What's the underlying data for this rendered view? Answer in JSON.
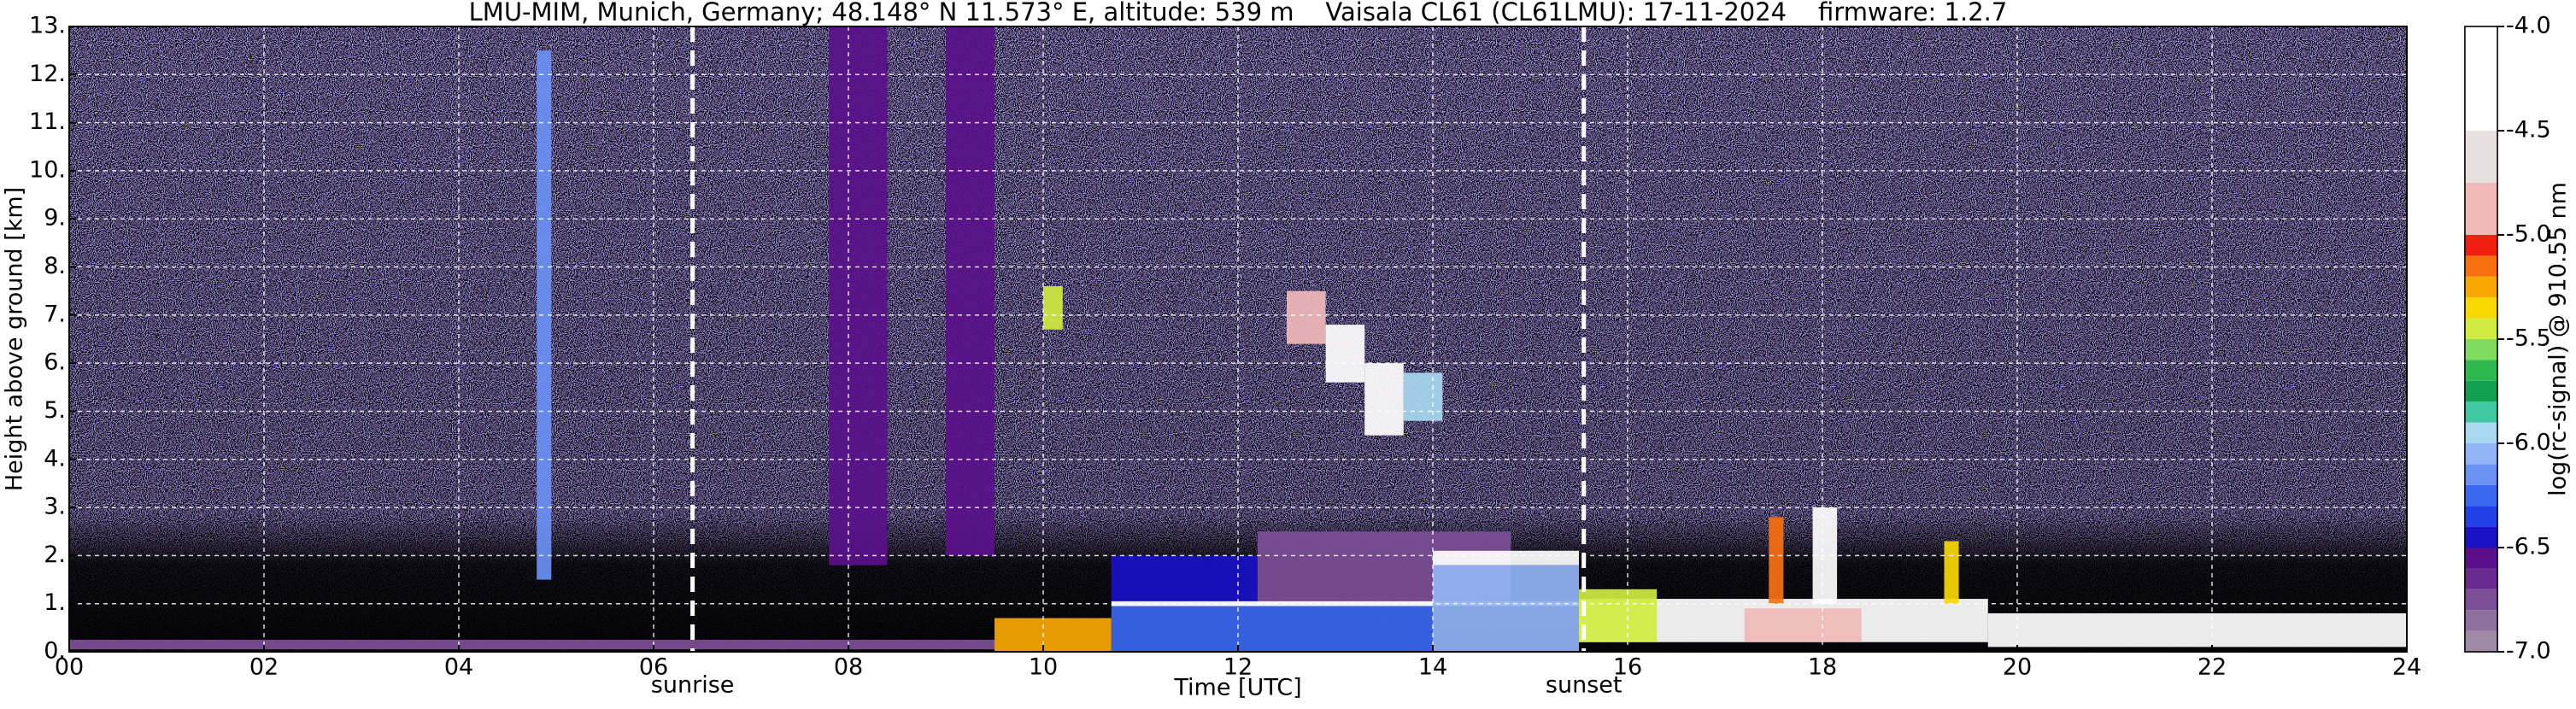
{
  "chart_data": {
    "type": "heatmap",
    "title": "LMU-MIM, Munich, Germany; 48.148° N 11.573° E, altitude: 539 m    Vaisala CL61 (CL61LMU): 17-11-2024    firmware: 1.2.7",
    "x_label": "Time [UTC]",
    "y_label": "Height above ground [km]",
    "colorbar_label": "log(rc-signal) @ 910.55 nm",
    "xlim": [
      0,
      24
    ],
    "xticks": [
      {
        "value": 0,
        "label": "00"
      },
      {
        "value": 2,
        "label": "02"
      },
      {
        "value": 4,
        "label": "04"
      },
      {
        "value": 6,
        "label": "06"
      },
      {
        "value": 8,
        "label": "08"
      },
      10,
      12,
      14,
      16,
      18,
      20,
      22,
      24
    ],
    "ylim": [
      0,
      13
    ],
    "yticks": [
      {
        "value": 0,
        "label": "0."
      },
      {
        "value": 1,
        "label": "1."
      },
      {
        "value": 2,
        "label": "2."
      },
      {
        "value": 3,
        "label": "3."
      },
      {
        "value": 4,
        "label": "4."
      },
      {
        "value": 5,
        "label": "5."
      },
      {
        "value": 6,
        "label": "6."
      },
      {
        "value": 7,
        "label": "7."
      },
      {
        "value": 8,
        "label": "8."
      },
      {
        "value": 9,
        "label": "9."
      },
      {
        "value": 10,
        "label": "10."
      },
      {
        "value": 11,
        "label": "11."
      },
      {
        "value": 12,
        "label": "12."
      },
      {
        "value": 13,
        "label": "13."
      }
    ],
    "grid": true,
    "clim": [
      -7,
      -4
    ],
    "cticks": [
      {
        "value": -7,
        "label": "-7.0"
      },
      {
        "value": -6.5,
        "label": "-6.5"
      },
      {
        "value": -6,
        "label": "-6.0"
      },
      {
        "value": -5.5,
        "label": "-5.5"
      },
      {
        "value": -5,
        "label": "-5.0"
      },
      {
        "value": -4.5,
        "label": "-4.5"
      },
      {
        "value": -4,
        "label": "-4.0"
      }
    ],
    "levels": [
      -7,
      -6.9,
      -6.8,
      -6.7,
      -6.6,
      -6.5,
      -6.4,
      -6.3,
      -6.2,
      -6.1,
      -6,
      -5.9,
      -5.8,
      -5.7,
      -5.6,
      -5.5,
      -5.4,
      -5.3,
      -5.2,
      -5.1,
      -5,
      -4.75,
      -4.5,
      -4
    ],
    "colors": [
      "#9e8aa6",
      "#8f6f9e",
      "#7d4f98",
      "#6a2a90",
      "#5a108a",
      "#1a10c8",
      "#2040e8",
      "#3a68f0",
      "#6a90f4",
      "#90b4f6",
      "#a8d8f0",
      "#40c8a0",
      "#10a050",
      "#30b850",
      "#80dc60",
      "#d0ec40",
      "#f8d800",
      "#f8a800",
      "#f87010",
      "#f02010",
      "#f0b8b8",
      "#e8e0e0",
      "#ffffff"
    ],
    "regions": [
      {
        "x0": 0,
        "x1": 9.5,
        "y0": 0.05,
        "y1": 0.25,
        "value": -6.8
      },
      {
        "x0": 4.8,
        "x1": 4.95,
        "y0": 1.5,
        "y1": 12.5,
        "value": -6.2
      },
      {
        "x0": 7.8,
        "x1": 8.4,
        "y0": 1.8,
        "y1": 13,
        "value": -6.55
      },
      {
        "x0": 9,
        "x1": 9.5,
        "y0": 2,
        "y1": 13,
        "value": -6.6
      },
      {
        "x0": 9.5,
        "x1": 10.7,
        "y0": 0,
        "y1": 0.7,
        "value": -5.3
      },
      {
        "x0": 10.7,
        "x1": 14,
        "y0": 0,
        "y1": 1,
        "value": -6.3
      },
      {
        "x0": 10.7,
        "x1": 12.2,
        "y0": 1,
        "y1": 2,
        "value": -6.45
      },
      {
        "x0": 12.2,
        "x1": 14.8,
        "y0": 1,
        "y1": 2.5,
        "value": -6.75
      },
      {
        "x0": 10.7,
        "x1": 15.5,
        "y0": 0.95,
        "y1": 1.05,
        "value": -4.2
      },
      {
        "x0": 14,
        "x1": 15.5,
        "y0": 1.8,
        "y1": 2.1,
        "value": -4.3
      },
      {
        "x0": 14,
        "x1": 15.5,
        "y0": 0,
        "y1": 1.8,
        "value": -6.1
      },
      {
        "x0": 10,
        "x1": 10.2,
        "y0": 6.7,
        "y1": 7.6,
        "value": -5.5
      },
      {
        "x0": 12.5,
        "x1": 12.9,
        "y0": 6.4,
        "y1": 7.5,
        "value": -5
      },
      {
        "x0": 12.9,
        "x1": 13.3,
        "y0": 5.6,
        "y1": 6.8,
        "value": -4.4
      },
      {
        "x0": 13.3,
        "x1": 13.7,
        "y0": 4.5,
        "y1": 6,
        "value": -4.3
      },
      {
        "x0": 13.7,
        "x1": 14.1,
        "y0": 4.8,
        "y1": 5.8,
        "value": -6
      },
      {
        "x0": 15.5,
        "x1": 19.7,
        "y0": 0.2,
        "y1": 1.1,
        "value": -4.2
      },
      {
        "x0": 15.5,
        "x1": 16.3,
        "y0": 0.2,
        "y1": 1.3,
        "value": -5.5
      },
      {
        "x0": 17.2,
        "x1": 18.4,
        "y0": 0.2,
        "y1": 0.9,
        "value": -5
      },
      {
        "x0": 17.45,
        "x1": 17.6,
        "y0": 1,
        "y1": 2.8,
        "value": -5.2
      },
      {
        "x0": 17.9,
        "x1": 18.15,
        "y0": 1,
        "y1": 3,
        "value": -4.4
      },
      {
        "x0": 19.25,
        "x1": 19.4,
        "y0": 1,
        "y1": 2.3,
        "value": -5.4
      },
      {
        "x0": 19.7,
        "x1": 24,
        "y0": 0.1,
        "y1": 0.8,
        "value": -4.3
      }
    ],
    "annotations": [
      {
        "text": "sunrise",
        "x": 6.4
      },
      {
        "text": "sunset",
        "x": 15.55
      }
    ]
  }
}
